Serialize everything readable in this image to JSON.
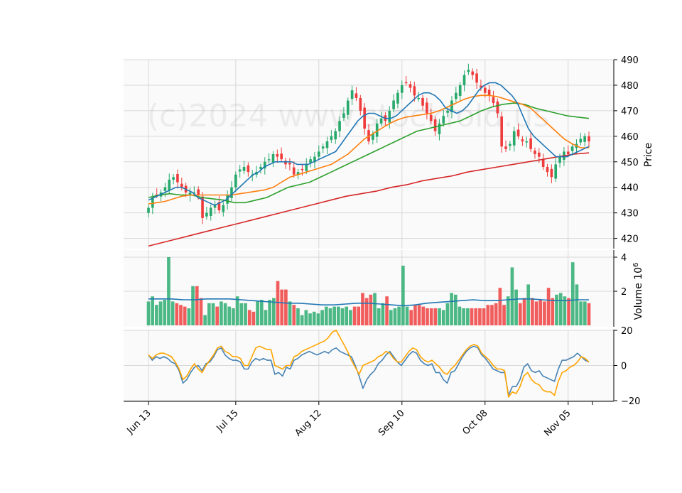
{
  "watermark": "(c)2024 www.stockfold.us",
  "colors": {
    "panel_bg": "#fafafa",
    "grid": "#d8d8d8",
    "up": "#26a96b",
    "down": "#ef3b3b",
    "ma_short": "#1f77b4",
    "ma_mid": "#ff7f0e",
    "ma_long": "#2ca02c",
    "ma_200": "#d62728",
    "vol_ma": "#1f77b4",
    "osc_a": "#4682b4",
    "osc_b": "#ffa500"
  },
  "chart_data": [
    {
      "type": "candlestick",
      "panel": "price",
      "ylabel": "Price",
      "ylim": [
        416,
        490
      ],
      "yticks": [
        420,
        430,
        440,
        450,
        460,
        470,
        480,
        490
      ],
      "x_tick_labels": [
        "Jun 13",
        "Jul 15",
        "Aug 12",
        "Sep 10",
        "Oct 08",
        "Nov 05"
      ],
      "x_tick_positions": [
        0,
        21,
        41,
        61,
        81,
        101
      ],
      "close": [
        432,
        436,
        437,
        438,
        440,
        443,
        444,
        442,
        440,
        438,
        438,
        438,
        437,
        428,
        430,
        432,
        433,
        431,
        433,
        437,
        440,
        445,
        447,
        448,
        446,
        445,
        446,
        448,
        450,
        451,
        453,
        452,
        451,
        449,
        449,
        445,
        446,
        447,
        449,
        451,
        452,
        454,
        456,
        458,
        460,
        462,
        466,
        469,
        474,
        478,
        475,
        470,
        463,
        458,
        461,
        465,
        467,
        466,
        470,
        474,
        477,
        480,
        481,
        479,
        476,
        475,
        472,
        469,
        466,
        462,
        465,
        468,
        470,
        474,
        477,
        480,
        484,
        486,
        484,
        481,
        479,
        477,
        476,
        473,
        469,
        456,
        455,
        457,
        462,
        460,
        458,
        458,
        455,
        453,
        452,
        448,
        446,
        444,
        449,
        452,
        454,
        453,
        456,
        457,
        459,
        460,
        458
      ],
      "ma_short": [
        435,
        436,
        437,
        438,
        439,
        440,
        440,
        439,
        438,
        436,
        435,
        434,
        433,
        434,
        435,
        437,
        439,
        441,
        443,
        445,
        446,
        448,
        449,
        450,
        450,
        450,
        450,
        449,
        449,
        449,
        450,
        451,
        452,
        453,
        454,
        457,
        460,
        463,
        466,
        468,
        469,
        469,
        468,
        467,
        467,
        468,
        470,
        472,
        474,
        476,
        477,
        477,
        476,
        474,
        471,
        470,
        469,
        470,
        472,
        475,
        478,
        480,
        481,
        481,
        480,
        478,
        476,
        473,
        468,
        463,
        460,
        458,
        456,
        454,
        452,
        452,
        452,
        453,
        454,
        455,
        456
      ],
      "ma_mid": [
        433.5,
        434,
        434.5,
        435.5,
        436.5,
        437,
        437,
        437,
        437,
        437,
        437,
        437.5,
        438,
        438.5,
        439,
        440,
        442,
        444,
        445,
        446,
        447,
        448,
        449,
        451,
        453,
        456,
        459,
        461,
        463,
        465,
        466.5,
        467.5,
        468,
        468.5,
        469,
        470,
        471.5,
        473,
        474.5,
        475.5,
        476,
        476,
        475.5,
        474.5,
        473.5,
        472.5,
        471,
        468,
        465,
        462,
        459,
        457,
        455.5,
        455.5
      ],
      "ma_long": [
        436,
        437,
        437.5,
        437,
        437,
        436,
        435.5,
        435,
        434,
        434,
        435,
        436,
        438,
        440,
        441,
        442,
        444,
        446,
        448,
        450,
        452,
        454,
        456,
        458,
        460,
        462,
        463,
        464,
        465,
        466,
        468,
        470,
        471.5,
        472.5,
        473,
        472.5,
        471,
        470,
        469,
        468,
        467.5,
        467
      ],
      "ma_200": [
        417,
        418.5,
        420,
        421.5,
        423,
        424.5,
        426,
        427.5,
        429,
        430.5,
        432,
        433.5,
        435,
        436.5,
        437.5,
        438.5,
        440,
        441,
        442.5,
        443.5,
        444.5,
        446,
        447,
        448,
        449,
        450,
        451,
        452,
        453,
        453.5
      ]
    },
    {
      "type": "bar",
      "panel": "volume",
      "ylabel": "Volume  10^6",
      "ylim": [
        0,
        4
      ],
      "yticks": [
        2,
        4
      ],
      "values": [
        1.4,
        1.7,
        1.2,
        1.4,
        1.5,
        4.0,
        1.4,
        1.3,
        1.2,
        1.1,
        1.0,
        2.3,
        2.3,
        1.6,
        0.6,
        1.3,
        1.3,
        1.1,
        1.4,
        1.3,
        1.1,
        1.0,
        1.7,
        1.3,
        1.3,
        0.9,
        0.8,
        1.4,
        1.5,
        0.9,
        1.5,
        1.6,
        2.6,
        2.1,
        2.1,
        1.4,
        1.2,
        1.0,
        0.6,
        0.9,
        0.7,
        0.8,
        0.7,
        0.9,
        1.1,
        1.0,
        1.1,
        1.1,
        1.0,
        1.1,
        0.9,
        1.1,
        1.1,
        1.9,
        1.6,
        1.8,
        1.9,
        1.0,
        1.3,
        1.7,
        0.9,
        1.0,
        1.1,
        3.5,
        1.1,
        0.9,
        1.2,
        1.2,
        1.1,
        1.0,
        1.0,
        1.0,
        1.0,
        0.9,
        1.3,
        1.9,
        1.8,
        1.1,
        1.0,
        1.0,
        1.0,
        1.0,
        1.0,
        1.0,
        1.2,
        1.2,
        1.3,
        2.2,
        1.2,
        1.7,
        3.4,
        2.1,
        1.3,
        1.6,
        2.4,
        1.6,
        1.4,
        1.5,
        1.4,
        2.2,
        1.6,
        1.8,
        1.9,
        1.7,
        1.6,
        3.7,
        2.4,
        1.4,
        1.4,
        1.3
      ],
      "ma": [
        1.55,
        1.55,
        1.55,
        1.5,
        1.5,
        1.55,
        1.55,
        1.55,
        1.5,
        1.45,
        1.4,
        1.35,
        1.3,
        1.3,
        1.25,
        1.2,
        1.2,
        1.25,
        1.3,
        1.3,
        1.25,
        1.2,
        1.15,
        1.2,
        1.3,
        1.35,
        1.4,
        1.45,
        1.5,
        1.45,
        1.45,
        1.5,
        1.55,
        1.55,
        1.5,
        1.45,
        1.45,
        1.5,
        1.5
      ]
    },
    {
      "type": "line",
      "panel": "oscillator",
      "ylim": [
        -20,
        20
      ],
      "yticks": [
        -20,
        0,
        20
      ],
      "series": [
        {
          "values": [
            6,
            3,
            5,
            4,
            5,
            4,
            2,
            1,
            -3,
            -10,
            -8,
            -4,
            -1,
            0,
            -3,
            1,
            2,
            5,
            9,
            10,
            6,
            4,
            3,
            3,
            2,
            -2,
            -2,
            2,
            4,
            3,
            4,
            3,
            3,
            -5,
            -4,
            -6,
            -1,
            -2,
            3,
            4,
            6,
            7,
            8,
            7,
            6,
            7,
            8,
            7,
            9,
            10,
            8,
            7,
            6,
            5,
            0,
            -6,
            -13,
            -8,
            -5,
            -3,
            1,
            3,
            6,
            8,
            5,
            2,
            0,
            3,
            6,
            8,
            7,
            3,
            1,
            0,
            1,
            -4,
            -4,
            -8,
            -10,
            -4,
            -3,
            1,
            5,
            8,
            10,
            11,
            10,
            6,
            4,
            1,
            -2,
            -3,
            -4,
            -4,
            -17,
            -12,
            -12,
            -8,
            -1,
            1,
            -3,
            -4,
            -3,
            -6,
            -7,
            -8,
            -9,
            -2,
            3,
            3,
            4,
            5,
            7,
            5,
            3,
            2
          ]
        },
        {
          "values": [
            6,
            4,
            6,
            7,
            7,
            6,
            5,
            2,
            -2,
            -8,
            -6,
            -2,
            1,
            -2,
            -4,
            0,
            3,
            6,
            10,
            11,
            8,
            7,
            5,
            5,
            4,
            0,
            0,
            5,
            10,
            11,
            10,
            9,
            9,
            0,
            -1,
            -2,
            0,
            0,
            5,
            6,
            8,
            9,
            10,
            11,
            12,
            13,
            14,
            16,
            19,
            20,
            16,
            12,
            8,
            3,
            -1,
            -5,
            0,
            1,
            2,
            3,
            5,
            6,
            8,
            7,
            4,
            2,
            2,
            5,
            8,
            10,
            9,
            5,
            3,
            2,
            3,
            1,
            -1,
            -4,
            -5,
            -2,
            0,
            3,
            6,
            9,
            11,
            12,
            11,
            7,
            5,
            3,
            0,
            -2,
            -2,
            -3,
            -18,
            -15,
            -16,
            -12,
            -6,
            -4,
            -8,
            -10,
            -11,
            -14,
            -15,
            -15,
            -17,
            -9,
            -4,
            -3,
            -1,
            0,
            2,
            5,
            4,
            2
          ]
        }
      ]
    }
  ]
}
